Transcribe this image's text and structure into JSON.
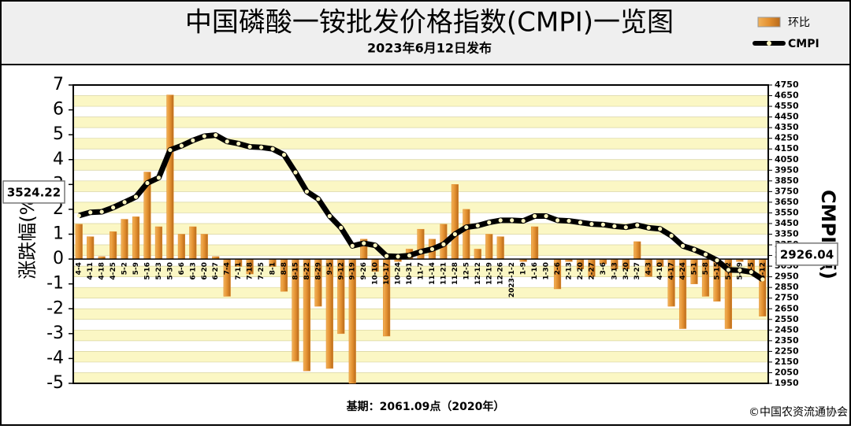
{
  "chart_data": {
    "type": "bar_line",
    "title": "中国磷酸一铵批发价格指数(CMPI)一览图",
    "subtitle": "2023年6月12日发布",
    "y_label": "涨跌幅(%)",
    "y2_label": "CMPI(点)",
    "footer_left": "基期：2061.09点（2020年）",
    "footer_right": "©中国农资流通协会",
    "annotations": [
      "3524.22",
      "2926.04"
    ],
    "categories": [
      "4-4",
      "4-11",
      "4-18",
      "4-25",
      "5-2",
      "5-9",
      "5-16",
      "5-23",
      "5-30",
      "6-6",
      "6-13",
      "6-20",
      "6-27",
      "7-4",
      "7-11",
      "7-18",
      "7-25",
      "8-1",
      "8-8",
      "8-15",
      "8-22",
      "8-29",
      "9-5",
      "9-12",
      "9-19",
      "9-26",
      "10-10",
      "10-17",
      "10-24",
      "10-31",
      "11-7",
      "11-14",
      "11-21",
      "11-28",
      "12-5",
      "12-12",
      "12-19",
      "12-26",
      "2023-1-2",
      "1-9",
      "1-16",
      "1-30",
      "2-6",
      "2-13",
      "2-20",
      "2-27",
      "3-6",
      "3-13",
      "3-20",
      "3-27",
      "4-3",
      "4-10",
      "4-17",
      "4-24",
      "5-1",
      "5-8",
      "5-15",
      "5-22",
      "5-29",
      "6-5",
      "6-12"
    ],
    "series": [
      {
        "name": "环比",
        "type": "bar",
        "color": "#e39030",
        "values": [
          1.4,
          0.9,
          0.1,
          1.1,
          1.6,
          1.7,
          3.5,
          1.3,
          6.6,
          1.0,
          1.3,
          1.0,
          0.1,
          -1.5,
          -0.3,
          -0.6,
          0.0,
          -0.3,
          -1.3,
          -4.1,
          -4.5,
          -1.9,
          -4.4,
          -3.0,
          -5.0,
          0.8,
          -0.5,
          -3.1,
          -0.1,
          0.4,
          1.2,
          0.8,
          1.4,
          3.0,
          2.0,
          0.4,
          1.0,
          0.9,
          0.0,
          -0.1,
          1.3,
          0.0,
          -1.2,
          -0.1,
          -0.4,
          -0.7,
          -0.2,
          -0.4,
          -0.4,
          0.7,
          -0.7,
          -0.3,
          -1.9,
          -2.8,
          -1.0,
          -1.5,
          -1.7,
          -2.8,
          -0.1,
          -0.6,
          -2.3
        ]
      },
      {
        "name": "CMPI",
        "type": "line",
        "axis": "y2",
        "color": "#000000",
        "values": [
          3524.22,
          3555,
          3560,
          3600,
          3650,
          3700,
          3830,
          3880,
          4140,
          4180,
          4230,
          4270,
          4280,
          4220,
          4200,
          4170,
          4165,
          4150,
          4095,
          3930,
          3750,
          3680,
          3520,
          3410,
          3240,
          3265,
          3245,
          3145,
          3140,
          3150,
          3185,
          3210,
          3255,
          3350,
          3415,
          3430,
          3460,
          3480,
          3480,
          3475,
          3520,
          3520,
          3480,
          3475,
          3460,
          3445,
          3440,
          3425,
          3415,
          3435,
          3410,
          3400,
          3335,
          3240,
          3205,
          3160,
          3105,
          3015,
          3012,
          2995,
          2926.04
        ]
      }
    ],
    "ylim": [
      -5,
      7
    ],
    "yticks": [
      -5,
      -4,
      -3,
      -2,
      -1,
      0,
      1,
      2,
      3,
      4,
      5,
      6,
      7
    ],
    "y2lim": [
      1950,
      4750
    ],
    "y2ticks": [
      1950,
      2050,
      2150,
      2250,
      2350,
      2450,
      2550,
      2650,
      2750,
      2850,
      2950,
      3050,
      3150,
      3250,
      3350,
      3450,
      3550,
      3650,
      3750,
      3850,
      3950,
      4050,
      4150,
      4250,
      4350,
      4450,
      4550,
      4650,
      4750
    ],
    "grid": true
  }
}
